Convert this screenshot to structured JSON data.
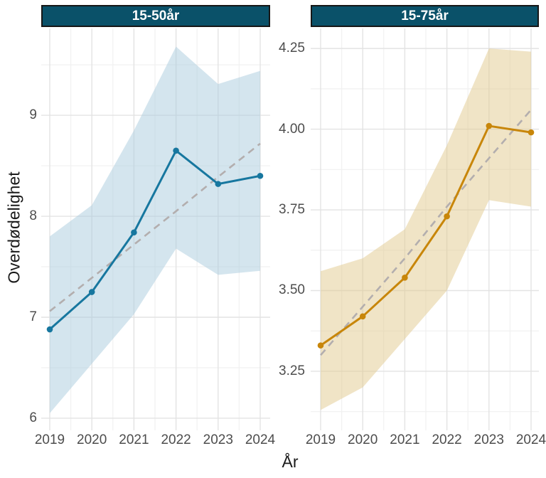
{
  "axes": {
    "y_label": "Overdødelighet",
    "x_label": "År"
  },
  "colors": {
    "strip_bg": "#0a5169",
    "strip_text": "#ffffff",
    "grid_major": "#e3e3e3",
    "grid_minor": "#f1f1f1",
    "tick_text": "#4d4d4d",
    "axis_title": "#1a1a1a",
    "blue_line": "#17779f",
    "blue_ribbon": "#a9ccdd",
    "orange_line": "#c8860a",
    "tan_ribbon": "#e2ca8e",
    "trend_dash": "#b3aeae"
  },
  "chart_data": [
    {
      "type": "line",
      "panel": "15-50år",
      "x": [
        2019,
        2020,
        2021,
        2022,
        2023,
        2024
      ],
      "xtick_labels": [
        "2019",
        "2020",
        "2021",
        "2022",
        "2023",
        "2024"
      ],
      "series": [
        {
          "name": "overdodelighet-observert",
          "values": [
            6.88,
            7.25,
            7.84,
            8.65,
            8.32,
            8.4
          ],
          "color": "#17779f",
          "style": "solid",
          "points": true
        },
        {
          "name": "trend",
          "values": [
            7.06,
            7.39,
            7.72,
            8.05,
            8.39,
            8.72
          ],
          "color": "#b3aeae",
          "style": "dashed",
          "points": false
        }
      ],
      "ribbon": {
        "lower": [
          6.05,
          6.54,
          7.03,
          7.68,
          7.42,
          7.46
        ],
        "upper": [
          7.8,
          8.11,
          8.85,
          9.68,
          9.31,
          9.44
        ],
        "color": "#a9ccdd",
        "opacity": 0.5
      },
      "yticks": [
        6,
        7,
        8,
        9
      ],
      "ytick_labels": [
        "6",
        "7",
        "8",
        "9"
      ],
      "ylim": [
        5.88,
        9.86
      ],
      "grid": true,
      "legend": "none"
    },
    {
      "type": "line",
      "panel": "15-75år",
      "x": [
        2019,
        2020,
        2021,
        2022,
        2023,
        2024
      ],
      "xtick_labels": [
        "2019",
        "2020",
        "2021",
        "2022",
        "2023",
        "2024"
      ],
      "series": [
        {
          "name": "overdodelighet-observert",
          "values": [
            3.33,
            3.42,
            3.54,
            3.73,
            4.01,
            3.99
          ],
          "color": "#c8860a",
          "style": "solid",
          "points": true
        },
        {
          "name": "trend",
          "values": [
            3.3,
            3.45,
            3.6,
            3.76,
            3.91,
            4.06
          ],
          "color": "#b3aeae",
          "style": "dashed",
          "points": false
        }
      ],
      "ribbon": {
        "lower": [
          3.13,
          3.2,
          3.35,
          3.5,
          3.78,
          3.76
        ],
        "upper": [
          3.56,
          3.6,
          3.69,
          3.95,
          4.25,
          4.24
        ],
        "color": "#e2ca8e",
        "opacity": 0.5
      },
      "yticks": [
        3.25,
        3.5,
        3.75,
        4.0,
        4.25
      ],
      "ytick_labels": [
        "3.25",
        "3.50",
        "3.75",
        "4.00",
        "4.25"
      ],
      "ylim": [
        3.067,
        4.312
      ],
      "grid": true,
      "legend": "none"
    }
  ]
}
